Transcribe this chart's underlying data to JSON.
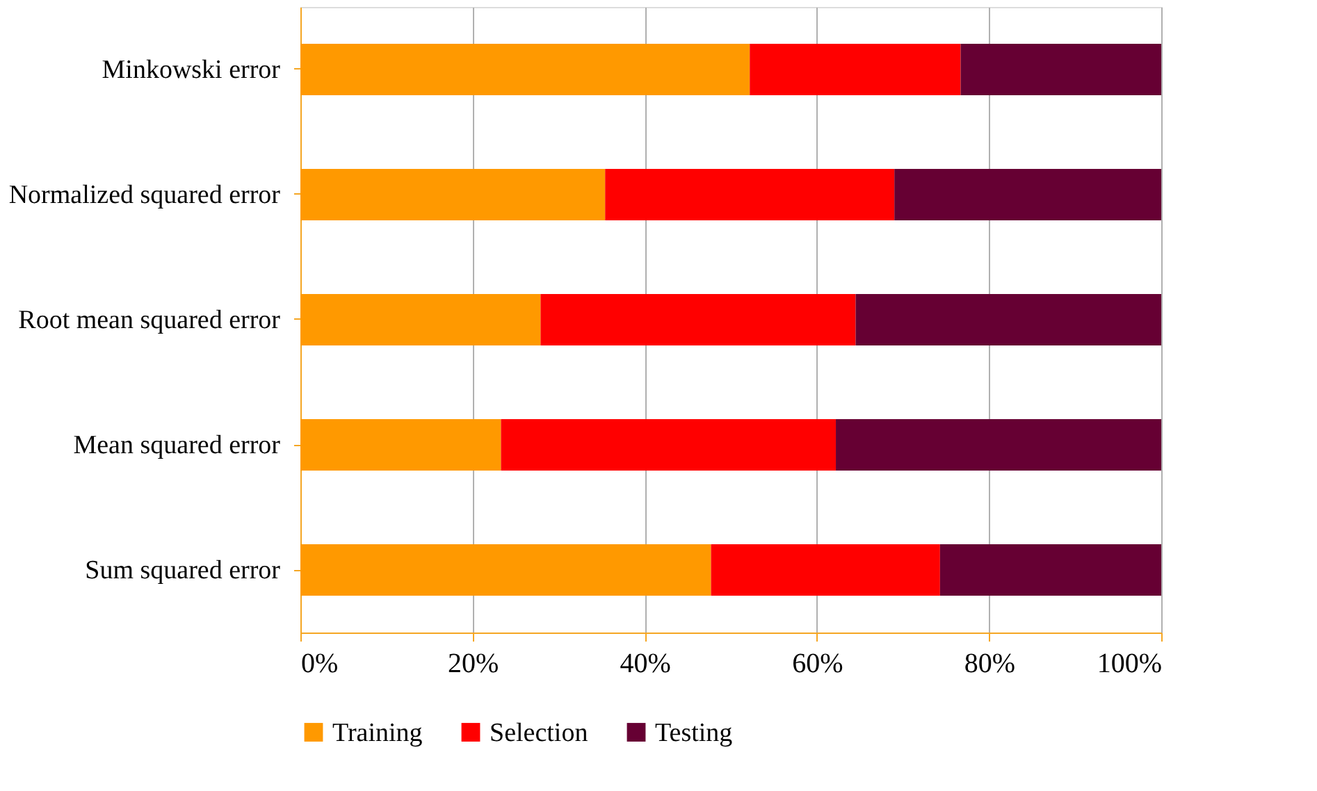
{
  "chart_data": {
    "type": "bar",
    "orientation": "horizontal",
    "stacked": true,
    "categories": [
      "Minkowski error",
      "Normalized squared error",
      "Root mean squared error",
      "Mean squared error",
      "Sum squared error"
    ],
    "series": [
      {
        "name": "Training",
        "color": "#ff9900",
        "values": [
          52.2,
          35.4,
          27.9,
          23.3,
          47.7
        ]
      },
      {
        "name": "Selection",
        "color": "#ff0000",
        "values": [
          24.5,
          33.6,
          36.6,
          38.9,
          26.6
        ]
      },
      {
        "name": "Testing",
        "color": "#660033",
        "values": [
          23.3,
          31.0,
          35.5,
          37.8,
          25.7
        ]
      }
    ],
    "xlim": [
      0,
      100
    ],
    "xticks": [
      {
        "value": 0,
        "label": "0%"
      },
      {
        "value": 20,
        "label": "20%"
      },
      {
        "value": 40,
        "label": "40%"
      },
      {
        "value": 60,
        "label": "60%"
      },
      {
        "value": 80,
        "label": "80%"
      },
      {
        "value": 100,
        "label": "100%"
      }
    ],
    "grid": "x",
    "legend": "bottom"
  }
}
